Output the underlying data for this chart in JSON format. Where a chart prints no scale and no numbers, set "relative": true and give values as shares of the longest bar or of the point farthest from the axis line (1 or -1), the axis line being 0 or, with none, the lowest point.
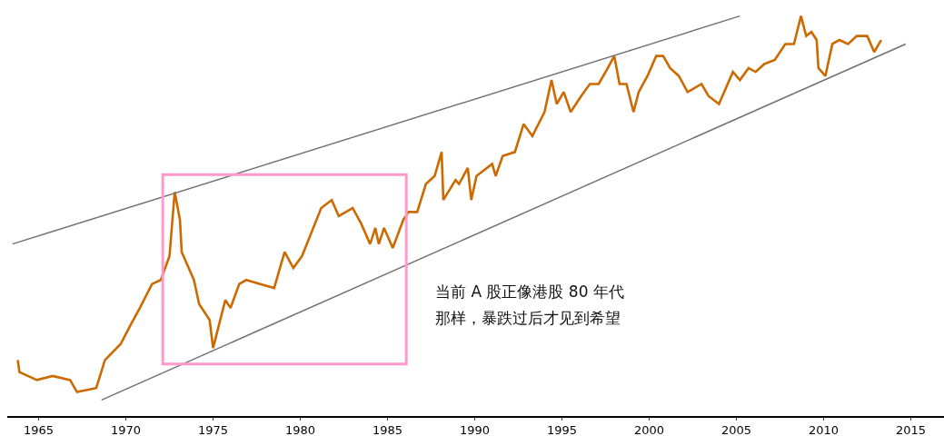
{
  "chart_data": {
    "type": "line",
    "relative": true,
    "xlim": [
      1963.2,
      2016.9
    ],
    "xticks": [
      1965,
      1970,
      1975,
      1980,
      1985,
      1990,
      1995,
      2000,
      2005,
      2010,
      2015
    ],
    "tick_labels": "x",
    "marker": "none",
    "annotations": [
      "当前 A 股正像港股 80 年代",
      "那样，暴跌过后才见到希望"
    ],
    "series": [
      {
        "color": "#cc6a00",
        "x": [
          1963.8,
          1963.9,
          1964.9,
          1965.8,
          1966.8,
          1967.2,
          1968.3,
          1968.8,
          1969.7,
          1970.3,
          1970.8,
          1971.5,
          1972.0,
          1972.5,
          1972.8,
          1973.1,
          1973.2,
          1973.9,
          1974.2,
          1974.8,
          1975.0,
          1975.7,
          1976.0,
          1976.5,
          1976.9,
          1977.7,
          1978.5,
          1979.1,
          1979.6,
          1980.1,
          1981.2,
          1981.8,
          1982.2,
          1983.0,
          1983.5,
          1984.0,
          1984.3,
          1984.5,
          1984.8,
          1985.3,
          1985.9,
          1986.2,
          1986.7,
          1987.2,
          1987.7,
          1988.1,
          1988.2,
          1988.9,
          1989.1,
          1989.6,
          1989.8,
          1990.1,
          1991.0,
          1991.2,
          1991.6,
          1992.3,
          1992.8,
          1993.3,
          1994.0,
          1994.4,
          1994.7,
          1995.1,
          1995.5,
          1996.1,
          1996.6,
          1997.1,
          1997.5,
          1998.0,
          1998.3,
          1998.7,
          1999.1,
          1999.4,
          1999.9,
          2000.4,
          2000.8,
          2001.2,
          2001.7,
          2002.2,
          2003.0,
          2003.4,
          2004.0,
          2004.8,
          2005.2,
          2005.7,
          2006.1,
          2006.6,
          2007.2,
          2007.8,
          2008.3,
          2008.7,
          2009.0,
          2009.3,
          2009.6,
          2009.7,
          2010.1,
          2010.5,
          2010.9,
          2011.4,
          2011.9,
          2012.5,
          2012.9,
          2013.3
        ],
        "values": [
          0.14,
          0.11,
          0.09,
          0.1,
          0.09,
          0.06,
          0.07,
          0.14,
          0.18,
          0.23,
          0.27,
          0.33,
          0.34,
          0.4,
          0.56,
          0.49,
          0.41,
          0.34,
          0.28,
          0.24,
          0.17,
          0.29,
          0.27,
          0.33,
          0.34,
          0.33,
          0.32,
          0.41,
          0.37,
          0.4,
          0.52,
          0.54,
          0.5,
          0.52,
          0.48,
          0.43,
          0.47,
          0.43,
          0.47,
          0.42,
          0.49,
          0.51,
          0.51,
          0.58,
          0.6,
          0.66,
          0.54,
          0.59,
          0.58,
          0.62,
          0.54,
          0.6,
          0.63,
          0.6,
          0.65,
          0.66,
          0.73,
          0.7,
          0.76,
          0.84,
          0.78,
          0.81,
          0.76,
          0.8,
          0.83,
          0.83,
          0.86,
          0.9,
          0.83,
          0.83,
          0.76,
          0.81,
          0.85,
          0.9,
          0.9,
          0.87,
          0.85,
          0.81,
          0.83,
          0.8,
          0.78,
          0.86,
          0.84,
          0.87,
          0.86,
          0.88,
          0.89,
          0.93,
          0.93,
          1.0,
          0.95,
          0.96,
          0.94,
          0.87,
          0.85,
          0.93,
          0.94,
          0.93,
          0.95,
          0.95,
          0.91,
          0.94
        ]
      },
      {
        "type": "line",
        "color": "#707070",
        "x": [
          1963.5,
          2005.2
        ],
        "values": [
          0.43,
          1.0
        ]
      },
      {
        "type": "line",
        "color": "#707070",
        "x": [
          1968.6,
          2014.7
        ],
        "values": [
          0.04,
          0.93
        ]
      }
    ]
  }
}
